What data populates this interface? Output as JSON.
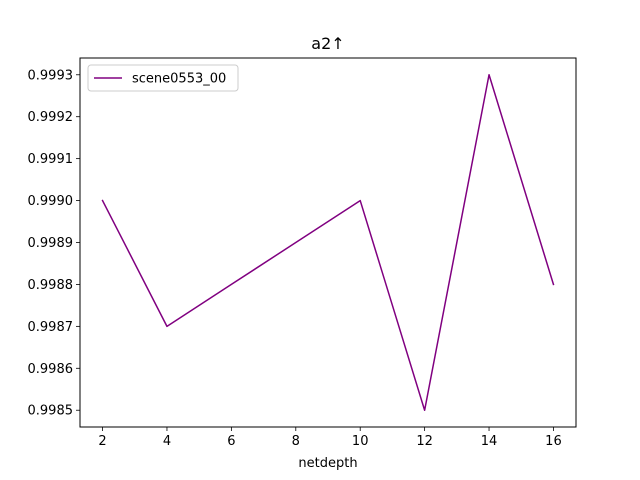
{
  "chart_data": {
    "type": "line",
    "title": "a2↑",
    "xlabel": "netdepth",
    "ylabel": "",
    "x": [
      2,
      4,
      6,
      8,
      10,
      12,
      14,
      16
    ],
    "series": [
      {
        "name": "scene0553_00",
        "color": "#800080",
        "values": [
          0.999,
          0.9987,
          0.9988,
          0.9989,
          0.999,
          0.9985,
          0.9993,
          0.9988
        ]
      }
    ],
    "xlim": [
      1.3,
      16.7
    ],
    "ylim": [
      0.99846,
      0.99934
    ],
    "xticks": [
      2,
      4,
      6,
      8,
      10,
      12,
      14,
      16
    ],
    "xtick_labels": [
      "2",
      "4",
      "6",
      "8",
      "10",
      "12",
      "14",
      "16"
    ],
    "yticks": [
      0.9985,
      0.9986,
      0.9987,
      0.9988,
      0.9989,
      0.999,
      0.9991,
      0.9992,
      0.9993
    ],
    "ytick_labels": [
      "0.9985",
      "0.9986",
      "0.9987",
      "0.9988",
      "0.9989",
      "0.9990",
      "0.9991",
      "0.9992",
      "0.9993"
    ],
    "grid": false,
    "legend_position": "top-left"
  }
}
